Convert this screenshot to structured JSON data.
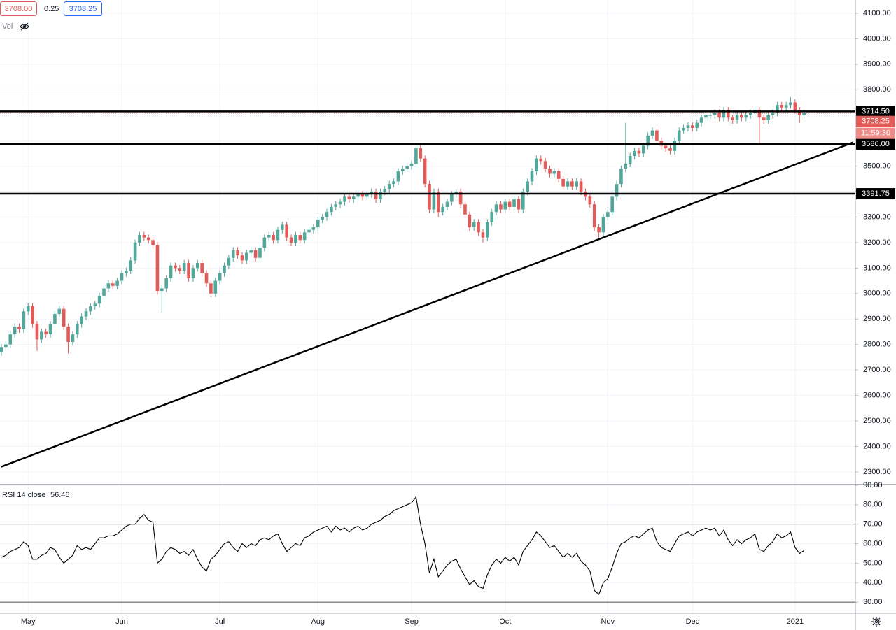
{
  "chart_data": {
    "type": "candlestick",
    "quote": {
      "bid": "3708.00",
      "spread": "0.25",
      "ask": "3708.25",
      "volume": "Vol"
    },
    "up_color": "#53a69a",
    "down_color": "#e25b58",
    "ylim": [
      2253,
      4152
    ],
    "yticks": [
      {
        "value": 2300,
        "label": "2300.00"
      },
      {
        "value": 2400,
        "label": "2400.00"
      },
      {
        "value": 2500,
        "label": "2500.00"
      },
      {
        "value": 2600,
        "label": "2600.00"
      },
      {
        "value": 2700,
        "label": "2700.00"
      },
      {
        "value": 2800,
        "label": "2800.00"
      },
      {
        "value": 2900,
        "label": "2900.00"
      },
      {
        "value": 3000,
        "label": "3000.00"
      },
      {
        "value": 3100,
        "label": "3100.00"
      },
      {
        "value": 3200,
        "label": "3200.00"
      },
      {
        "value": 3300,
        "label": "3300.00"
      },
      {
        "value": 3400,
        "label": "3400.00"
      },
      {
        "value": 3500,
        "label": "3500.00"
      },
      {
        "value": 3600,
        "label": "3600.00"
      },
      {
        "value": 3700,
        "label": "3700.00"
      },
      {
        "value": 3800,
        "label": "3800.00"
      },
      {
        "value": 3900,
        "label": "3900.00"
      },
      {
        "value": 4000,
        "label": "4000.00"
      },
      {
        "value": 4100,
        "label": "4100.00"
      }
    ],
    "grid": true,
    "categories": [
      null,
      null,
      null,
      null,
      null,
      null,
      "May",
      null,
      null,
      null,
      null,
      null,
      null,
      null,
      null,
      null,
      null,
      null,
      null,
      null,
      null,
      null,
      null,
      null,
      null,
      null,
      null,
      "Jun",
      null,
      null,
      null,
      null,
      null,
      null,
      null,
      null,
      null,
      null,
      null,
      null,
      null,
      null,
      null,
      null,
      null,
      null,
      null,
      null,
      null,
      "Jul",
      null,
      null,
      null,
      null,
      null,
      null,
      null,
      null,
      null,
      null,
      null,
      null,
      null,
      null,
      null,
      null,
      null,
      null,
      null,
      null,
      null,
      "Aug",
      null,
      null,
      null,
      null,
      null,
      null,
      null,
      null,
      null,
      null,
      null,
      null,
      null,
      null,
      null,
      null,
      null,
      null,
      null,
      null,
      "Sep",
      null,
      null,
      null,
      null,
      null,
      null,
      null,
      null,
      null,
      null,
      null,
      null,
      null,
      null,
      null,
      null,
      null,
      null,
      null,
      null,
      "Oct",
      null,
      null,
      null,
      null,
      null,
      null,
      null,
      null,
      null,
      null,
      null,
      null,
      null,
      null,
      null,
      null,
      null,
      null,
      null,
      null,
      null,
      null,
      "Nov",
      null,
      null,
      null,
      null,
      null,
      null,
      null,
      null,
      null,
      null,
      null,
      null,
      null,
      null,
      null,
      null,
      null,
      null,
      "Dec",
      null,
      null,
      null,
      null,
      null,
      null,
      null,
      null,
      null,
      null,
      null,
      null,
      null,
      null,
      null,
      null,
      null,
      null,
      null,
      null,
      null,
      null,
      "2021",
      null,
      null
    ],
    "open": [
      2770,
      2790,
      2800,
      2840,
      2870,
      2860,
      2930,
      2950,
      2880,
      2820,
      2850,
      2840,
      2880,
      2920,
      2940,
      2870,
      2810,
      2840,
      2880,
      2910,
      2930,
      2950,
      2960,
      2990,
      3020,
      3040,
      3030,
      3050,
      3080,
      3090,
      3130,
      3200,
      3230,
      3220,
      3210,
      3190,
      3010,
      3020,
      3060,
      3110,
      3100,
      3090,
      3120,
      3060,
      3100,
      3120,
      3080,
      3040,
      3000,
      3050,
      3080,
      3110,
      3140,
      3170,
      3150,
      3130,
      3160,
      3170,
      3140,
      3180,
      3220,
      3230,
      3210,
      3250,
      3270,
      3220,
      3200,
      3230,
      3210,
      3240,
      3250,
      3260,
      3290,
      3300,
      3320,
      3340,
      3350,
      3360,
      3380,
      3370,
      3380,
      3390,
      3380,
      3390,
      3400,
      3370,
      3400,
      3410,
      3430,
      3440,
      3480,
      3490,
      3500,
      3510,
      3570,
      3530,
      3430,
      3330,
      3400,
      3320,
      3340,
      3360,
      3390,
      3400,
      3350,
      3310,
      3260,
      3280,
      3240,
      3220,
      3280,
      3320,
      3350,
      3330,
      3360,
      3340,
      3370,
      3330,
      3400,
      3440,
      3480,
      3530,
      3520,
      3490,
      3470,
      3480,
      3450,
      3420,
      3440,
      3420,
      3440,
      3400,
      3380,
      3350,
      3260,
      3240,
      3300,
      3320,
      3380,
      3430,
      3490,
      3510,
      3540,
      3560,
      3550,
      3580,
      3620,
      3640,
      3600,
      3580,
      3570,
      3560,
      3600,
      3640,
      3650,
      3660,
      3650,
      3670,
      3690,
      3700,
      3700,
      3710,
      3690,
      3720,
      3690,
      3680,
      3700,
      3690,
      3700,
      3710,
      3720,
      3690,
      3680,
      3700,
      3710,
      3740,
      3730,
      3740,
      3750,
      3720,
      3700
    ],
    "high": [
      2802,
      2812,
      2852,
      2882,
      2882,
      2942,
      2962,
      2962,
      2892,
      2862,
      2862,
      2892,
      2932,
      2952,
      2952,
      2882,
      2852,
      2892,
      2922,
      2942,
      2962,
      2972,
      3002,
      3032,
      3052,
      3052,
      3062,
      3092,
      3102,
      3142,
      3212,
      3242,
      3242,
      3232,
      3222,
      3202,
      3032,
      3072,
      3122,
      3122,
      3112,
      3132,
      3132,
      3112,
      3132,
      3132,
      3092,
      3052,
      3062,
      3092,
      3122,
      3152,
      3182,
      3182,
      3162,
      3172,
      3182,
      3182,
      3192,
      3232,
      3242,
      3242,
      3262,
      3282,
      3282,
      3232,
      3242,
      3242,
      3252,
      3262,
      3272,
      3302,
      3312,
      3332,
      3352,
      3362,
      3372,
      3392,
      3392,
      3392,
      3402,
      3402,
      3402,
      3412,
      3412,
      3412,
      3422,
      3442,
      3452,
      3492,
      3502,
      3512,
      3522,
      3590,
      3590,
      3542,
      3442,
      3412,
      3412,
      3352,
      3372,
      3402,
      3412,
      3412,
      3362,
      3322,
      3292,
      3292,
      3252,
      3292,
      3332,
      3362,
      3362,
      3372,
      3372,
      3382,
      3382,
      3412,
      3452,
      3492,
      3542,
      3542,
      3532,
      3502,
      3492,
      3492,
      3462,
      3452,
      3452,
      3452,
      3452,
      3412,
      3392,
      3362,
      3272,
      3312,
      3332,
      3392,
      3442,
      3502,
      3670,
      3552,
      3572,
      3572,
      3592,
      3632,
      3652,
      3652,
      3612,
      3592,
      3582,
      3612,
      3652,
      3662,
      3672,
      3672,
      3682,
      3702,
      3712,
      3712,
      3722,
      3722,
      3732,
      3732,
      3702,
      3712,
      3712,
      3712,
      3722,
      3732,
      3732,
      3702,
      3712,
      3722,
      3752,
      3752,
      3752,
      3770,
      3762,
      3732,
      3720
    ],
    "low": [
      2756,
      2776,
      2786,
      2826,
      2846,
      2846,
      2916,
      2866,
      2775,
      2806,
      2826,
      2826,
      2866,
      2906,
      2856,
      2765,
      2796,
      2826,
      2866,
      2896,
      2916,
      2936,
      2946,
      2976,
      3006,
      3016,
      3016,
      3036,
      3066,
      3076,
      3116,
      3186,
      3206,
      3196,
      3176,
      2996,
      2925,
      3006,
      3046,
      3086,
      3076,
      3076,
      3046,
      3046,
      3086,
      3066,
      3026,
      2986,
      2986,
      3036,
      3066,
      3096,
      3126,
      3136,
      3116,
      3116,
      3146,
      3126,
      3126,
      3166,
      3206,
      3196,
      3196,
      3236,
      3206,
      3186,
      3186,
      3196,
      3196,
      3226,
      3236,
      3246,
      3276,
      3286,
      3306,
      3326,
      3336,
      3346,
      3356,
      3356,
      3366,
      3366,
      3366,
      3376,
      3356,
      3356,
      3386,
      3396,
      3416,
      3426,
      3466,
      3476,
      3486,
      3496,
      3516,
      3416,
      3316,
      3316,
      3300,
      3306,
      3326,
      3346,
      3376,
      3336,
      3296,
      3246,
      3246,
      3226,
      3200,
      3206,
      3266,
      3306,
      3316,
      3316,
      3326,
      3326,
      3316,
      3316,
      3386,
      3426,
      3466,
      3506,
      3476,
      3456,
      3456,
      3436,
      3406,
      3406,
      3406,
      3406,
      3386,
      3366,
      3336,
      3246,
      3220,
      3226,
      3286,
      3306,
      3366,
      3416,
      3476,
      3496,
      3526,
      3536,
      3536,
      3566,
      3606,
      3586,
      3566,
      3556,
      3546,
      3546,
      3586,
      3626,
      3636,
      3636,
      3636,
      3656,
      3676,
      3686,
      3686,
      3676,
      3676,
      3676,
      3666,
      3666,
      3676,
      3676,
      3686,
      3696,
      3590,
      3666,
      3666,
      3686,
      3696,
      3716,
      3716,
      3726,
      3706,
      3670,
      3686
    ],
    "close": [
      2790,
      2800,
      2840,
      2870,
      2860,
      2930,
      2950,
      2880,
      2820,
      2850,
      2840,
      2880,
      2920,
      2940,
      2870,
      2810,
      2840,
      2880,
      2910,
      2930,
      2950,
      2960,
      2990,
      3020,
      3040,
      3030,
      3050,
      3080,
      3090,
      3130,
      3200,
      3230,
      3220,
      3210,
      3190,
      3010,
      3020,
      3060,
      3110,
      3100,
      3090,
      3120,
      3060,
      3100,
      3120,
      3080,
      3040,
      3000,
      3050,
      3080,
      3110,
      3140,
      3170,
      3150,
      3130,
      3160,
      3170,
      3140,
      3180,
      3220,
      3230,
      3210,
      3250,
      3270,
      3220,
      3200,
      3230,
      3210,
      3240,
      3250,
      3260,
      3290,
      3300,
      3320,
      3340,
      3350,
      3360,
      3380,
      3370,
      3380,
      3390,
      3380,
      3390,
      3400,
      3370,
      3400,
      3410,
      3430,
      3440,
      3480,
      3490,
      3500,
      3510,
      3570,
      3530,
      3430,
      3330,
      3400,
      3320,
      3340,
      3360,
      3390,
      3400,
      3350,
      3310,
      3260,
      3280,
      3240,
      3220,
      3280,
      3320,
      3350,
      3330,
      3360,
      3340,
      3370,
      3330,
      3400,
      3440,
      3480,
      3530,
      3520,
      3490,
      3470,
      3480,
      3450,
      3420,
      3440,
      3420,
      3440,
      3400,
      3380,
      3350,
      3260,
      3240,
      3300,
      3320,
      3380,
      3430,
      3490,
      3510,
      3540,
      3560,
      3550,
      3580,
      3620,
      3640,
      3600,
      3580,
      3570,
      3560,
      3600,
      3640,
      3650,
      3660,
      3650,
      3670,
      3690,
      3700,
      3700,
      3710,
      3690,
      3720,
      3690,
      3680,
      3700,
      3690,
      3700,
      3710,
      3720,
      3690,
      3680,
      3700,
      3710,
      3740,
      3730,
      3740,
      3750,
      3720,
      3700,
      3708.25
    ],
    "countdown": "11:59:30",
    "levels": [
      {
        "value": 3714.5,
        "label": "3714.50"
      },
      {
        "value": 3586,
        "label": "3586.00"
      },
      {
        "value": 3391.75,
        "label": "3391.75"
      }
    ],
    "trendline": {
      "x": [
        0,
        191
      ],
      "y": [
        2320,
        3593
      ]
    },
    "indicator": {
      "name": "RSI 14 close",
      "ylim": [
        24.3,
        90.7
      ],
      "yticks": [
        {
          "value": 30,
          "label": "30.00"
        },
        {
          "value": 40,
          "label": "40.00"
        },
        {
          "value": 50,
          "label": "50.00"
        },
        {
          "value": 60,
          "label": "60.00"
        },
        {
          "value": 70,
          "label": "70.00"
        },
        {
          "value": 80,
          "label": "80.00"
        },
        {
          "value": 90,
          "label": "90.00"
        }
      ],
      "bands": [
        70,
        30
      ],
      "values": [
        53,
        54,
        56,
        57,
        58,
        61,
        59,
        52,
        52,
        54,
        55,
        58,
        57,
        53,
        50,
        52,
        54,
        59,
        57,
        58,
        57,
        60,
        63,
        63,
        64,
        64,
        65,
        67,
        69,
        70,
        70,
        73,
        75,
        72,
        71,
        50,
        52,
        56,
        58,
        57,
        55,
        56,
        54,
        57,
        52,
        48,
        46,
        52,
        54,
        57,
        60,
        61,
        58,
        56,
        60,
        58,
        60,
        59,
        62,
        63,
        62,
        64,
        65,
        60,
        56,
        58,
        60,
        59,
        63,
        64,
        66,
        67,
        68,
        69,
        66,
        69,
        67,
        68,
        66,
        68,
        69,
        67,
        68,
        70,
        71,
        72,
        74,
        75,
        77,
        78,
        79,
        80,
        81,
        84,
        70,
        60,
        45,
        52,
        43,
        46,
        49,
        51,
        52,
        47,
        43,
        39,
        41,
        38,
        37,
        44,
        49,
        52,
        50,
        53,
        51,
        53,
        49,
        56,
        59,
        62,
        66,
        64,
        61,
        58,
        59,
        56,
        53,
        55,
        53,
        55,
        51,
        49,
        46,
        36,
        34,
        40,
        42,
        48,
        55,
        60,
        61,
        63,
        64,
        63,
        65,
        67,
        68,
        61,
        58,
        57,
        56,
        60,
        64,
        65,
        66,
        64,
        66,
        67,
        68,
        67,
        68,
        64,
        67,
        62,
        59,
        62,
        60,
        62,
        63,
        65,
        57,
        56,
        59,
        61,
        65,
        63,
        64,
        66,
        58,
        55,
        56.46
      ]
    }
  }
}
